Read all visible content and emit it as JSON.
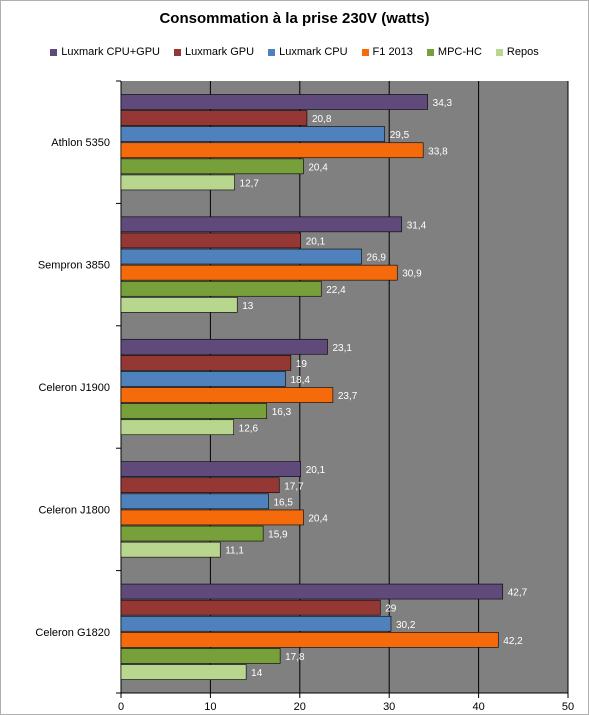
{
  "chart_data": {
    "type": "bar",
    "orientation": "horizontal",
    "title": "Consommation à la prise 230V (watts)",
    "xlabel": "",
    "ylabel": "",
    "xlim": [
      0,
      50
    ],
    "x_ticks": [
      0,
      10,
      20,
      30,
      40,
      50
    ],
    "grid": true,
    "legend_position": "top",
    "plot_background": "#808080",
    "categories": [
      "Athlon 5350",
      "Sempron 3850",
      "Celeron J1900",
      "Celeron J1800",
      "Celeron G1820"
    ],
    "series": [
      {
        "name": "Luxmark CPU+GPU",
        "color": "#604a7b",
        "values": [
          34.3,
          31.4,
          23.1,
          20.1,
          42.7
        ],
        "labels": [
          "34,3",
          "31,4",
          "23,1",
          "20,1",
          "42,7"
        ]
      },
      {
        "name": "Luxmark GPU",
        "color": "#953735",
        "values": [
          20.8,
          20.1,
          19,
          17.7,
          29
        ],
        "labels": [
          "20,8",
          "20,1",
          "19",
          "17,7",
          "29"
        ]
      },
      {
        "name": "Luxmark CPU",
        "color": "#4f81bd",
        "values": [
          29.5,
          26.9,
          18.4,
          16.5,
          30.2
        ],
        "labels": [
          "29,5",
          "26,9",
          "18,4",
          "16,5",
          "30,2"
        ]
      },
      {
        "name": "F1 2013",
        "color": "#f56a0a",
        "values": [
          33.8,
          30.9,
          23.7,
          20.4,
          42.2
        ],
        "labels": [
          "33,8",
          "30,9",
          "23,7",
          "20,4",
          "42,2"
        ]
      },
      {
        "name": "MPC-HC",
        "color": "#77a03a",
        "values": [
          20.4,
          22.4,
          16.3,
          15.9,
          17.8
        ],
        "labels": [
          "20,4",
          "22,4",
          "16,3",
          "15,9",
          "17,8"
        ]
      },
      {
        "name": "Repos",
        "color": "#b8d68e",
        "values": [
          12.7,
          13,
          12.6,
          11.1,
          14
        ],
        "labels": [
          "12,7",
          "13",
          "12,6",
          "11,1",
          "14"
        ]
      }
    ]
  }
}
